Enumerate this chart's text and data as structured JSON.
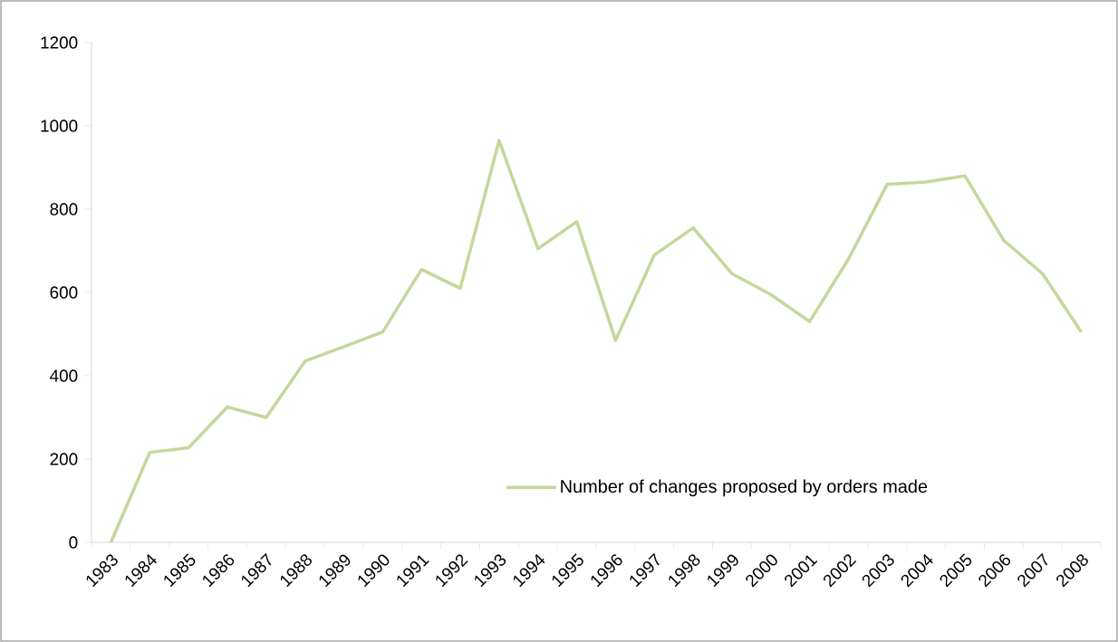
{
  "chart_data": {
    "type": "line",
    "categories": [
      "1983",
      "1984",
      "1985",
      "1986",
      "1987",
      "1988",
      "1989",
      "1990",
      "1991",
      "1992",
      "1993",
      "1994",
      "1995",
      "1996",
      "1997",
      "1998",
      "1999",
      "2000",
      "2001",
      "2002",
      "2003",
      "2004",
      "2005",
      "2006",
      "2007",
      "2008"
    ],
    "series": [
      {
        "name": "Number of changes proposed by orders made",
        "color": "#c4d79b",
        "values": [
          0,
          216,
          227,
          325,
          300,
          435,
          470,
          505,
          655,
          610,
          965,
          705,
          770,
          485,
          690,
          755,
          645,
          595,
          530,
          680,
          860,
          865,
          880,
          725,
          645,
          505
        ]
      }
    ],
    "ylim": [
      0,
      1200
    ],
    "yticks": [
      0,
      200,
      400,
      600,
      800,
      1000,
      1200
    ],
    "grid": false,
    "legend": "bottom",
    "marker": "none",
    "line_style": "solid"
  }
}
